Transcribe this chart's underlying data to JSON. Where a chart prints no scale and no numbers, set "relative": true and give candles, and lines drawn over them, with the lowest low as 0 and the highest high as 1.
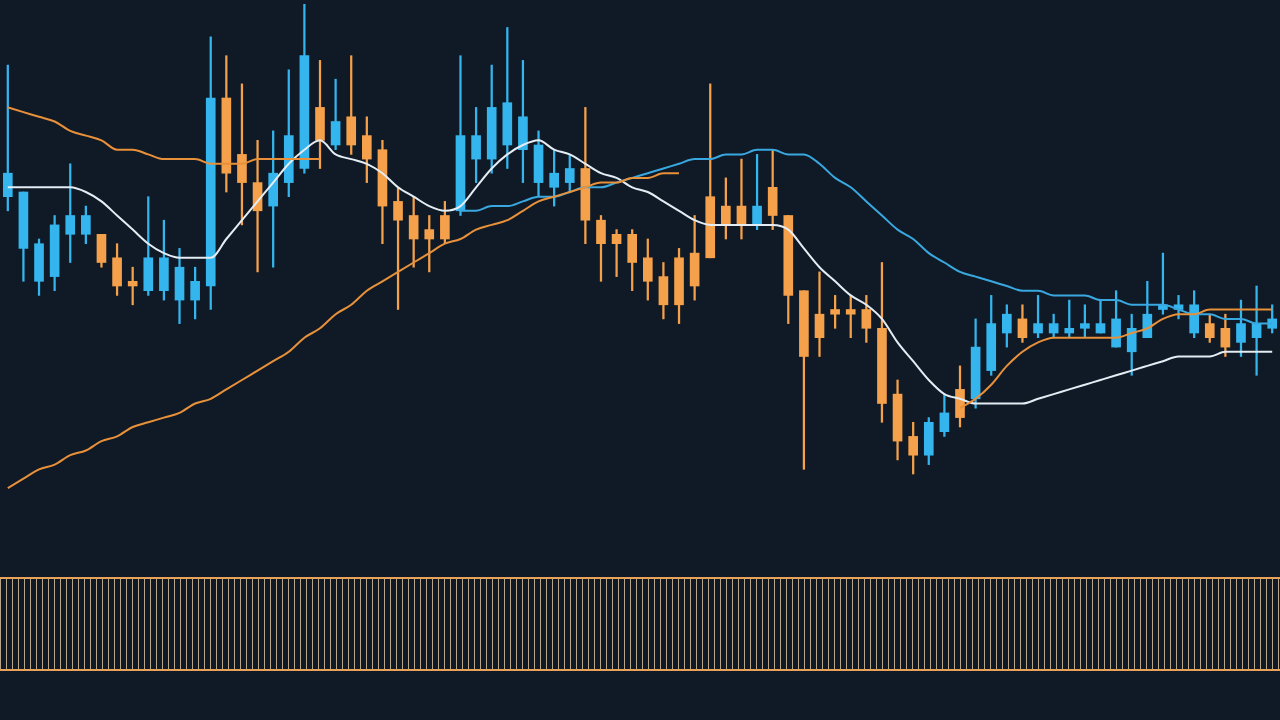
{
  "chart_data": {
    "type": "candlestick",
    "relative": true,
    "categories": [
      null,
      null,
      null,
      null,
      null,
      null,
      null,
      null,
      null,
      null,
      null,
      null,
      null,
      null,
      null,
      null,
      null,
      null,
      null,
      null,
      null,
      null,
      null,
      null,
      null,
      null,
      null,
      null,
      null,
      null,
      null,
      null,
      null,
      null,
      null,
      null,
      null,
      null,
      null,
      null,
      null,
      null,
      null,
      null,
      null,
      null,
      null,
      null,
      null,
      null,
      null,
      null,
      null,
      null,
      null,
      null,
      null,
      null,
      null,
      null,
      null,
      null,
      null,
      null,
      null,
      null,
      null,
      null,
      null,
      null,
      null,
      null,
      null,
      null,
      null,
      null,
      null,
      null,
      null,
      null,
      null,
      null
    ],
    "ohlc": [
      [
        0.59,
        0.87,
        0.56,
        0.64
      ],
      [
        0.48,
        0.6,
        0.41,
        0.6
      ],
      [
        0.41,
        0.5,
        0.38,
        0.49
      ],
      [
        0.42,
        0.55,
        0.39,
        0.53
      ],
      [
        0.51,
        0.66,
        0.45,
        0.55
      ],
      [
        0.51,
        0.57,
        0.49,
        0.55
      ],
      [
        0.51,
        0.51,
        0.44,
        0.45
      ],
      [
        0.46,
        0.49,
        0.38,
        0.4
      ],
      [
        0.41,
        0.44,
        0.36,
        0.4
      ],
      [
        0.39,
        0.59,
        0.38,
        0.46
      ],
      [
        0.39,
        0.54,
        0.37,
        0.46
      ],
      [
        0.37,
        0.48,
        0.32,
        0.44
      ],
      [
        0.37,
        0.44,
        0.33,
        0.41
      ],
      [
        0.4,
        0.93,
        0.35,
        0.8
      ],
      [
        0.8,
        0.89,
        0.6,
        0.64
      ],
      [
        0.68,
        0.83,
        0.53,
        0.62
      ],
      [
        0.62,
        0.71,
        0.43,
        0.56
      ],
      [
        0.57,
        0.73,
        0.44,
        0.64
      ],
      [
        0.62,
        0.86,
        0.59,
        0.72
      ],
      [
        0.65,
        1.0,
        0.64,
        0.89
      ],
      [
        0.78,
        0.88,
        0.65,
        0.71
      ],
      [
        0.7,
        0.84,
        0.69,
        0.75
      ],
      [
        0.76,
        0.89,
        0.68,
        0.7
      ],
      [
        0.72,
        0.76,
        0.62,
        0.67
      ],
      [
        0.69,
        0.71,
        0.49,
        0.57
      ],
      [
        0.58,
        0.61,
        0.35,
        0.54
      ],
      [
        0.55,
        0.59,
        0.44,
        0.5
      ],
      [
        0.52,
        0.55,
        0.43,
        0.5
      ],
      [
        0.55,
        0.58,
        0.49,
        0.5
      ],
      [
        0.56,
        0.89,
        0.55,
        0.72
      ],
      [
        0.67,
        0.78,
        0.62,
        0.72
      ],
      [
        0.67,
        0.87,
        0.64,
        0.78
      ],
      [
        0.7,
        0.95,
        0.65,
        0.79
      ],
      [
        0.69,
        0.88,
        0.62,
        0.76
      ],
      [
        0.62,
        0.73,
        0.59,
        0.7
      ],
      [
        0.61,
        0.69,
        0.57,
        0.64
      ],
      [
        0.62,
        0.68,
        0.6,
        0.65
      ],
      [
        0.65,
        0.78,
        0.49,
        0.54
      ],
      [
        0.54,
        0.55,
        0.41,
        0.49
      ],
      [
        0.51,
        0.52,
        0.42,
        0.49
      ],
      [
        0.51,
        0.52,
        0.39,
        0.45
      ],
      [
        0.46,
        0.5,
        0.37,
        0.41
      ],
      [
        0.42,
        0.45,
        0.33,
        0.36
      ],
      [
        0.46,
        0.48,
        0.32,
        0.36
      ],
      [
        0.47,
        0.55,
        0.37,
        0.4
      ],
      [
        0.59,
        0.83,
        0.46,
        0.46
      ],
      [
        0.57,
        0.63,
        0.5,
        0.53
      ],
      [
        0.57,
        0.67,
        0.5,
        0.53
      ],
      [
        0.53,
        0.68,
        0.52,
        0.57
      ],
      [
        0.61,
        0.69,
        0.52,
        0.55
      ],
      [
        0.55,
        0.55,
        0.32,
        0.38
      ],
      [
        0.39,
        0.39,
        0.01,
        0.25
      ],
      [
        0.34,
        0.43,
        0.25,
        0.29
      ],
      [
        0.35,
        0.38,
        0.31,
        0.34
      ],
      [
        0.35,
        0.38,
        0.29,
        0.34
      ],
      [
        0.35,
        0.38,
        0.28,
        0.31
      ],
      [
        0.31,
        0.45,
        0.11,
        0.15
      ],
      [
        0.17,
        0.2,
        0.03,
        0.07
      ],
      [
        0.08,
        0.11,
        0.0,
        0.04
      ],
      [
        0.04,
        0.12,
        0.02,
        0.11
      ],
      [
        0.09,
        0.17,
        0.08,
        0.13
      ],
      [
        0.18,
        0.23,
        0.1,
        0.12
      ],
      [
        0.16,
        0.33,
        0.14,
        0.27
      ],
      [
        0.22,
        0.38,
        0.21,
        0.32
      ],
      [
        0.3,
        0.36,
        0.27,
        0.34
      ],
      [
        0.33,
        0.36,
        0.28,
        0.29
      ],
      [
        0.3,
        0.38,
        0.29,
        0.32
      ],
      [
        0.3,
        0.34,
        0.29,
        0.32
      ],
      [
        0.3,
        0.37,
        0.29,
        0.31
      ],
      [
        0.31,
        0.36,
        0.29,
        0.32
      ],
      [
        0.3,
        0.37,
        0.3,
        0.32
      ],
      [
        0.27,
        0.39,
        0.27,
        0.33
      ],
      [
        0.26,
        0.34,
        0.21,
        0.31
      ],
      [
        0.29,
        0.41,
        0.29,
        0.34
      ],
      [
        0.35,
        0.47,
        0.34,
        0.36
      ],
      [
        0.35,
        0.38,
        0.33,
        0.36
      ],
      [
        0.3,
        0.39,
        0.29,
        0.36
      ],
      [
        0.32,
        0.34,
        0.28,
        0.29
      ],
      [
        0.31,
        0.34,
        0.25,
        0.27
      ],
      [
        0.28,
        0.37,
        0.25,
        0.32
      ],
      [
        0.29,
        0.4,
        0.21,
        0.32
      ],
      [
        0.31,
        0.36,
        0.3,
        0.33
      ]
    ],
    "colors": [
      "#35b5ee",
      "#35b5ee",
      "#35b5ee",
      "#35b5ee",
      "#35b5ee",
      "#35b5ee",
      "#f5a04a",
      "#f5a04a",
      "#f5a04a",
      "#35b5ee",
      "#35b5ee",
      "#35b5ee",
      "#35b5ee",
      "#35b5ee",
      "#f5a04a",
      "#f5a04a",
      "#f5a04a",
      "#35b5ee",
      "#35b5ee",
      "#35b5ee",
      "#f5a04a",
      "#35b5ee",
      "#f5a04a",
      "#f5a04a",
      "#f5a04a",
      "#f5a04a",
      "#f5a04a",
      "#f5a04a",
      "#f5a04a",
      "#35b5ee",
      "#35b5ee",
      "#35b5ee",
      "#35b5ee",
      "#35b5ee",
      "#35b5ee",
      "#35b5ee",
      "#35b5ee",
      "#f5a04a",
      "#f5a04a",
      "#f5a04a",
      "#f5a04a",
      "#f5a04a",
      "#f5a04a",
      "#f5a04a",
      "#f5a04a",
      "#f5a04a",
      "#f5a04a",
      "#f5a04a",
      "#35b5ee",
      "#f5a04a",
      "#f5a04a",
      "#f5a04a",
      "#f5a04a",
      "#f5a04a",
      "#f5a04a",
      "#f5a04a",
      "#f5a04a",
      "#f5a04a",
      "#f5a04a",
      "#35b5ee",
      "#35b5ee",
      "#f5a04a",
      "#35b5ee",
      "#35b5ee",
      "#35b5ee",
      "#f5a04a",
      "#35b5ee",
      "#35b5ee",
      "#35b5ee",
      "#35b5ee",
      "#35b5ee",
      "#35b5ee",
      "#35b5ee",
      "#35b5ee",
      "#35b5ee",
      "#35b5ee",
      "#35b5ee",
      "#f5a04a",
      "#f5a04a",
      "#35b5ee",
      "#35b5ee",
      "#35b5ee"
    ],
    "series": [
      {
        "type": "line",
        "color": "#e4ecf4",
        "values": [
          0.61,
          0.61,
          0.61,
          0.61,
          0.61,
          0.6,
          0.58,
          0.55,
          0.52,
          0.49,
          0.47,
          0.46,
          0.46,
          0.46,
          0.5,
          0.54,
          0.58,
          0.62,
          0.66,
          0.69,
          0.71,
          0.68,
          0.67,
          0.66,
          0.64,
          0.61,
          0.59,
          0.57,
          0.56,
          0.57,
          0.61,
          0.65,
          0.68,
          0.7,
          0.71,
          0.69,
          0.68,
          0.66,
          0.64,
          0.63,
          0.61,
          0.6,
          0.58,
          0.56,
          0.54,
          0.53,
          0.53,
          0.53,
          0.53,
          0.53,
          0.52,
          0.48,
          0.44,
          0.41,
          0.38,
          0.36,
          0.33,
          0.28,
          0.24,
          0.2,
          0.17,
          0.16,
          0.15,
          0.15,
          0.15,
          0.15,
          0.16,
          0.17,
          0.18,
          0.19,
          0.2,
          0.21,
          0.22,
          0.23,
          0.24,
          0.25,
          0.25,
          0.25,
          0.26,
          0.26,
          0.26,
          0.26
        ]
      },
      {
        "type": "line",
        "color": "#3aa8e0",
        "values": [
          null,
          null,
          null,
          null,
          null,
          null,
          null,
          null,
          null,
          null,
          null,
          null,
          null,
          null,
          null,
          null,
          null,
          null,
          null,
          null,
          null,
          null,
          null,
          null,
          null,
          null,
          null,
          null,
          null,
          0.56,
          0.56,
          0.57,
          0.57,
          0.58,
          0.59,
          0.59,
          0.6,
          0.61,
          0.61,
          0.62,
          0.63,
          0.64,
          0.65,
          0.66,
          0.67,
          0.67,
          0.68,
          0.68,
          0.69,
          0.69,
          0.68,
          0.68,
          0.66,
          0.63,
          0.61,
          0.58,
          0.55,
          0.52,
          0.5,
          0.47,
          0.45,
          0.43,
          0.42,
          0.41,
          0.4,
          0.39,
          0.39,
          0.38,
          0.38,
          0.38,
          0.37,
          0.37,
          0.36,
          0.36,
          0.36,
          0.35,
          0.34,
          0.34,
          0.33,
          0.33,
          0.32,
          0.32
        ]
      },
      {
        "type": "line",
        "color": "#e8903a",
        "values": [
          -0.03,
          -0.01,
          0.01,
          0.02,
          0.04,
          0.05,
          0.07,
          0.08,
          0.1,
          0.11,
          0.12,
          0.13,
          0.15,
          0.16,
          0.18,
          0.2,
          0.22,
          0.24,
          0.26,
          0.29,
          0.31,
          0.34,
          0.36,
          0.39,
          0.41,
          0.43,
          0.45,
          0.47,
          0.49,
          0.5,
          0.52,
          0.53,
          0.54,
          0.56,
          0.58,
          0.59,
          0.6,
          0.61,
          0.62,
          0.62,
          0.63,
          0.63,
          0.64,
          0.64,
          null,
          null,
          null,
          null,
          null,
          null,
          null,
          null,
          null,
          null,
          null,
          null,
          null,
          null,
          null,
          null,
          null,
          0.14,
          0.16,
          0.19,
          0.23,
          0.26,
          0.28,
          0.29,
          0.29,
          0.29,
          0.29,
          0.29,
          0.3,
          0.31,
          0.33,
          0.34,
          0.34,
          0.35,
          0.35,
          0.35,
          0.35,
          0.35
        ]
      },
      {
        "type": "line",
        "color": "#e8903a",
        "values": [
          0.78,
          0.77,
          0.76,
          0.75,
          0.73,
          0.72,
          0.71,
          0.69,
          0.69,
          0.68,
          0.67,
          0.67,
          0.67,
          0.66,
          0.66,
          0.66,
          0.67,
          0.67,
          0.67,
          0.67,
          0.67,
          null,
          null,
          null,
          null,
          null,
          null,
          null,
          null,
          null,
          null,
          null,
          null,
          null,
          null,
          null,
          null,
          null,
          null,
          null,
          null,
          null,
          null,
          null,
          null,
          null,
          null,
          null,
          null,
          null,
          null,
          null,
          null,
          null,
          null,
          null,
          null,
          null,
          null,
          null,
          null,
          null,
          null,
          null,
          null,
          null,
          null,
          null,
          null,
          null,
          null,
          null,
          null,
          null,
          null,
          null,
          null,
          null,
          null,
          null,
          null,
          null
        ]
      }
    ]
  }
}
